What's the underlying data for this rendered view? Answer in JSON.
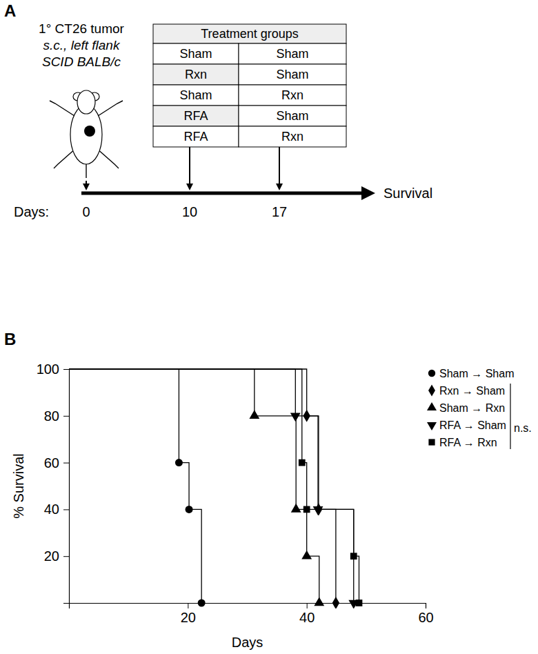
{
  "panel_labels": [
    "A",
    "B"
  ],
  "diagram": {
    "tumor_label": [
      "1° CT26 tumor",
      "s.c., left flank",
      "SCID BALB/c"
    ],
    "table": {
      "header": "Treatment groups",
      "rows": [
        [
          "Sham",
          "Sham"
        ],
        [
          "Rxn",
          "Sham"
        ],
        [
          "Sham",
          "Rxn"
        ],
        [
          "RFA",
          "Sham"
        ],
        [
          "RFA",
          "Rxn"
        ]
      ]
    },
    "timeline": {
      "label": "Days:",
      "days": [
        0,
        10,
        17
      ],
      "end_label": "Survival"
    }
  },
  "chart_data": {
    "type": "step",
    "xlabel": "Days",
    "ylabel": "% Survival",
    "xlim": [
      0,
      60
    ],
    "ylim": [
      0,
      100
    ],
    "xticks": [
      20,
      40,
      60
    ],
    "yticks": [
      20,
      40,
      60,
      80,
      100
    ],
    "color": "#000000",
    "legend": "outside-right",
    "annotation": "n.s.",
    "series": [
      {
        "name": "Sham → Sham",
        "marker": "circle",
        "x": [
          0,
          18.5,
          20.2,
          22.3
        ],
        "values": [
          100,
          60,
          40,
          0
        ]
      },
      {
        "name": "Rxn → Sham",
        "marker": "diamond",
        "x": [
          0,
          40,
          42,
          44.9
        ],
        "values": [
          100,
          80,
          40,
          0
        ]
      },
      {
        "name": "Sham → Rxn",
        "marker": "triangle-up",
        "x": [
          0,
          31.2,
          38.2,
          40,
          42.1
        ],
        "values": [
          100,
          80,
          40,
          20,
          0
        ]
      },
      {
        "name": "RFA → Sham",
        "marker": "triangle-down",
        "x": [
          0,
          38.1,
          41.9,
          47.9
        ],
        "values": [
          100,
          80,
          40,
          0
        ]
      },
      {
        "name": "RFA → Rxn",
        "marker": "square",
        "x": [
          0,
          39.2,
          40,
          47.9,
          48.8
        ],
        "values": [
          100,
          60,
          40,
          20,
          0
        ]
      }
    ]
  }
}
